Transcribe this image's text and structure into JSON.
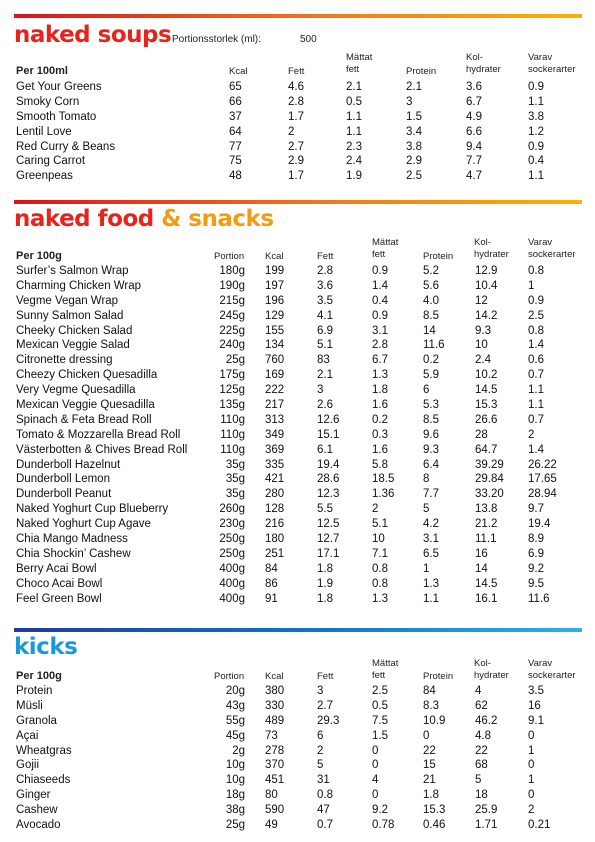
{
  "sections": {
    "soups": {
      "title": "naked soups",
      "portion_label": "Portionsstorlek (ml):",
      "portion_value": "500",
      "headers": {
        "name": "Per 100ml",
        "kcal": "Kcal",
        "fett": "Fett",
        "mattat1": "Mättat",
        "mattat2": "fett",
        "protein": "Protein",
        "kol1": "Kol-",
        "kol2": "hydrater",
        "varav1": "Varav",
        "varav2": "sockerarter"
      },
      "rows": [
        [
          "Get Your Greens",
          "65",
          "4.6",
          "2.1",
          "2.1",
          "3.6",
          "0.9"
        ],
        [
          "Smoky Corn",
          "66",
          "2.8",
          "0.5",
          "3",
          "6.7",
          "1.1"
        ],
        [
          "Smooth Tomato",
          "37",
          "1.7",
          "1.1",
          "1.5",
          "4.9",
          "3.8"
        ],
        [
          "Lentil Love",
          "64",
          "2",
          "1.1",
          "3.4",
          "6.6",
          "1.2"
        ],
        [
          "Red Curry & Beans",
          "77",
          "2.7",
          "2.3",
          "3.8",
          "9.4",
          "0.9"
        ],
        [
          "Caring Carrot",
          "75",
          "2.9",
          "2.4",
          "2.9",
          "7.7",
          "0.4"
        ],
        [
          "Greenpeas",
          "48",
          "1.7",
          "1.9",
          "2.5",
          "4.7",
          "1.1"
        ]
      ]
    },
    "food": {
      "title_a": "naked food",
      "title_b": "& snacks",
      "headers": {
        "name": "Per 100g",
        "portion": "Portion",
        "kcal": "Kcal",
        "fett": "Fett",
        "mattat1": "Mättat",
        "mattat2": "fett",
        "protein": "Protein",
        "kol1": "Kol-",
        "kol2": "hydrater",
        "varav1": "Varav",
        "varav2": "sockerarter"
      },
      "rows": [
        [
          "Surfer’s Salmon Wrap",
          "180g",
          "199",
          "2.8",
          "0.9",
          "5.2",
          "12.9",
          "0.8"
        ],
        [
          "Charming Chicken Wrap",
          "190g",
          "197",
          "3.6",
          "1.4",
          "5.6",
          "10.4",
          "1"
        ],
        [
          "Vegme Vegan Wrap",
          "215g",
          "196",
          "3.5",
          "0.4",
          "4.0",
          "12",
          "0.9"
        ],
        [
          "Sunny Salmon Salad",
          "245g",
          "129",
          "4.1",
          "0.9",
          "8.5",
          "14.2",
          "2.5"
        ],
        [
          "Cheeky Chicken Salad",
          "225g",
          "155",
          "6.9",
          "3.1",
          "14",
          "9.3",
          "0.8"
        ],
        [
          "Mexican Veggie Salad",
          "240g",
          "134",
          "5.1",
          "2.8",
          "11.6",
          "10",
          "1.4"
        ],
        [
          "Citronette dressing",
          "25g",
          "760",
          "83",
          "6.7",
          "0.2",
          "2.4",
          "0.6"
        ],
        [
          "Cheezy Chicken Quesadilla",
          "175g",
          "169",
          "2.1",
          "1.3",
          "5.9",
          "10.2",
          "0.7"
        ],
        [
          "Very Vegme Quesadilla",
          "125g",
          "222",
          "3",
          "1.8",
          "6",
          "14.5",
          "1.1"
        ],
        [
          "Mexican Veggie Quesadilla",
          "135g",
          "217",
          "2.6",
          "1.6",
          "5.3",
          "15.3",
          "1.1"
        ],
        [
          "Spinach & Feta Bread Roll",
          "110g",
          "313",
          "12.6",
          "0.2",
          "8.5",
          "26.6",
          "0.7"
        ],
        [
          "Tomato & Mozzarella Bread Roll",
          "110g",
          "349",
          "15.1",
          "0.3",
          "9.6",
          "28",
          "2"
        ],
        [
          "Västerbotten & Chives Bread Roll",
          "110g",
          "369",
          "6.1",
          "1.6",
          "9.3",
          "64.7",
          "1.4"
        ],
        [
          "Dunderboll Hazelnut",
          "35g",
          "335",
          "19.4",
          "5.8",
          "6.4",
          "39.29",
          "26.22"
        ],
        [
          "Dunderboll Lemon",
          "35g",
          "421",
          "28.6",
          "18.5",
          "8",
          "29.84",
          "17.65"
        ],
        [
          "Dunderboll Peanut",
          "35g",
          "280",
          "12.3",
          "1.36",
          "7.7",
          "33.20",
          "28.94"
        ],
        [
          "Naked Yoghurt Cup Blueberry",
          "260g",
          "128",
          "5.5",
          "2",
          "5",
          "13.8",
          "9.7"
        ],
        [
          "Naked Yoghurt Cup Agave",
          "230g",
          "216",
          "12.5",
          "5.1",
          "4.2",
          "21.2",
          "19.4"
        ],
        [
          "Chia Mango Madness",
          "250g",
          "180",
          "12.7",
          "10",
          "3.1",
          "11.1",
          "8.9"
        ],
        [
          "Chia Shockin’ Cashew",
          "250g",
          "251",
          "17.1",
          "7.1",
          "6.5",
          "16",
          "6.9"
        ],
        [
          "Berry Acai Bowl",
          "400g",
          "84",
          "1.8",
          "0.8",
          "1",
          "14",
          "9.2"
        ],
        [
          "Choco Acai Bowl",
          "400g",
          "86",
          "1.9",
          "0.8",
          "1.3",
          "14.5",
          "9.5"
        ],
        [
          "Feel Green Bowl",
          "400g",
          "91",
          "1.8",
          "1.3",
          "1.1",
          "16.1",
          "11.6"
        ]
      ]
    },
    "kicks": {
      "title": "kicks",
      "headers": {
        "name": "Per 100g",
        "portion": "Portion",
        "kcal": "Kcal",
        "fett": "Fett",
        "mattat1": "Mättat",
        "mattat2": "fett",
        "protein": "Protein",
        "kol1": "Kol-",
        "kol2": "hydrater",
        "varav1": "Varav",
        "varav2": "sockerarter"
      },
      "rows": [
        [
          "Protein",
          "20g",
          "380",
          "3",
          "2.5",
          "84",
          "4",
          "3.5"
        ],
        [
          "Müsli",
          "43g",
          "330",
          "2.7",
          "0.5",
          "8.3",
          "62",
          "16"
        ],
        [
          "Granola",
          "55g",
          "489",
          "29.3",
          "7.5",
          "10.9",
          "46.2",
          "9.1"
        ],
        [
          "Açai",
          "45g",
          "73",
          "6",
          "1.5",
          "0",
          "4.8",
          "0"
        ],
        [
          "Wheatgras",
          "2g",
          "278",
          "2",
          "0",
          "22",
          "22",
          "1"
        ],
        [
          "Gojii",
          "10g",
          "370",
          "5",
          "0",
          "15",
          "68",
          "0"
        ],
        [
          "Chiaseeds",
          "10g",
          "451",
          "31",
          "4",
          "21",
          "5",
          "1"
        ],
        [
          "Ginger",
          "18g",
          "80",
          "0.8",
          "0",
          "1.8",
          "18",
          "0"
        ],
        [
          "Cashew",
          "38g",
          "590",
          "47",
          "9.2",
          "15.3",
          "25.9",
          "2"
        ],
        [
          "Avocado",
          "25g",
          "49",
          "0.7",
          "0.78",
          "0.46",
          "1.71",
          "0.21"
        ]
      ]
    }
  }
}
